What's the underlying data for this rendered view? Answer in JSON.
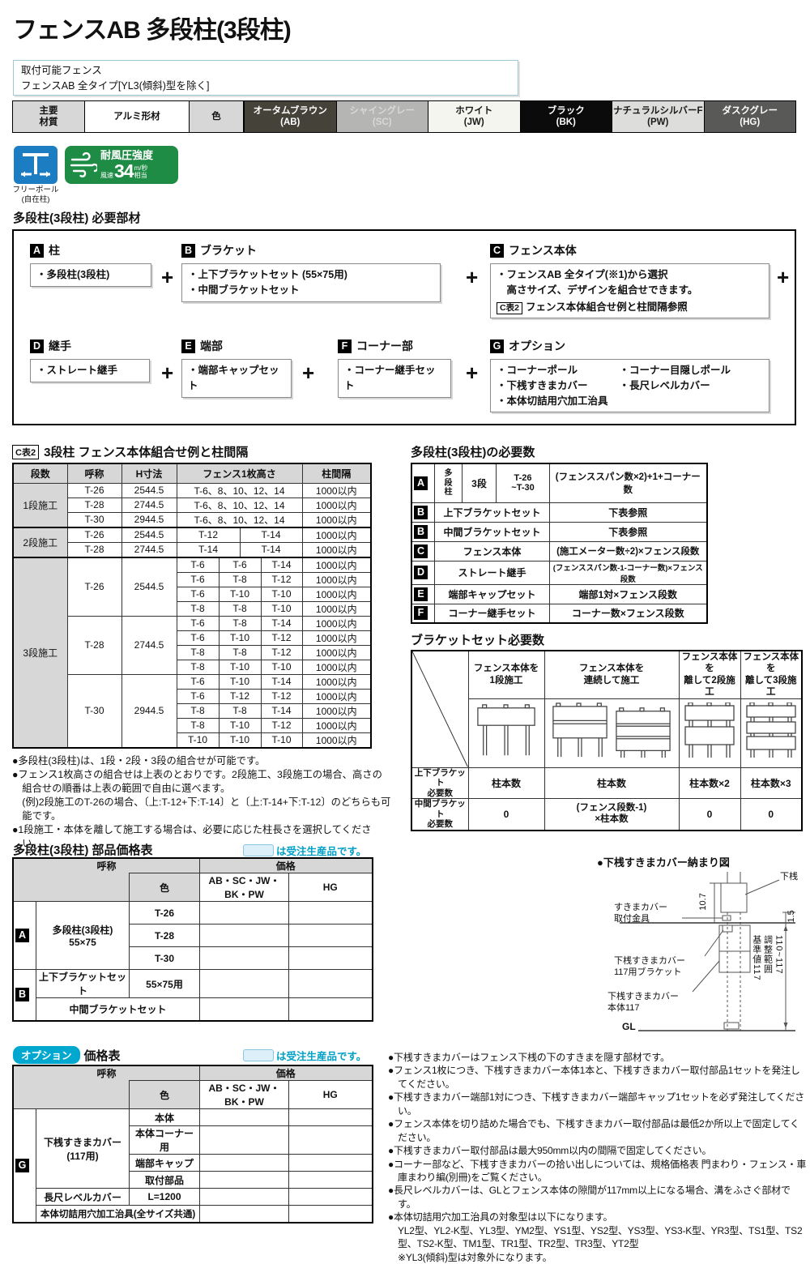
{
  "title": "フェンスAB 多段柱(3段柱)",
  "applicable_box": {
    "line1": "取付可能フェンス",
    "line2": "フェンスAB 全タイプ[YL3(傾斜)型を除く]"
  },
  "material_bar": {
    "material_label": "主要\n材質",
    "material_value": "アルミ形材",
    "color_label": "色",
    "colors": [
      {
        "name": "オータムブラウン",
        "code": "(AB)",
        "bg": "#454239",
        "fg": "#ffffff"
      },
      {
        "name": "シャイングレー",
        "code": "(SC)",
        "bg": "#b5b5b3",
        "fg": "#d8d8d6"
      },
      {
        "name": "ホワイト",
        "code": "(JW)",
        "bg": "#f5f5f0",
        "fg": "#1a1a1a"
      },
      {
        "name": "ブラック",
        "code": "(BK)",
        "bg": "#0b0b0b",
        "fg": "#ffffff"
      },
      {
        "name": "ナチュラルシルバーF",
        "code": "(PW)",
        "bg": "#dddddb",
        "fg": "#1a1a1a"
      },
      {
        "name": "ダスクグレー",
        "code": "(HG)",
        "bg": "#595957",
        "fg": "#ffffff"
      }
    ]
  },
  "badges": {
    "freepole_label": "フリーポール\n(自在柱)",
    "wind": {
      "title": "耐風圧強度",
      "prefix": "風速",
      "value": "34",
      "unit_top": "m/秒",
      "unit_bottom": "相当"
    }
  },
  "parts": {
    "section_title": "多段柱(3段柱) 必要部材",
    "plus": "+",
    "row1": [
      {
        "tag": "A",
        "name": "柱",
        "items": "・多段柱(3段柱)"
      },
      {
        "tag": "B",
        "name": "ブラケット",
        "items": "・上下ブラケットセット (55×75用)\n・中間ブラケットセット"
      },
      {
        "tag": "C",
        "name": "フェンス本体",
        "items": "・フェンスAB 全タイプ(※1)から選択\n　高さサイズ、デザインを組合せできます。",
        "ref_tag": "C表2",
        "ref_text": "フェンス本体組合せ例と柱間隔参照"
      }
    ],
    "row2": [
      {
        "tag": "D",
        "name": "継手",
        "items": "・ストレート継手"
      },
      {
        "tag": "E",
        "name": "端部",
        "items": "・端部キャップセット"
      },
      {
        "tag": "F",
        "name": "コーナー部",
        "items": "・コーナー継手セット"
      },
      {
        "tag": "G",
        "name": "オプション",
        "col1": "・コーナーポール\n・下桟すきまカバー\n・本体切詰用穴加工治具",
        "col2": "・コーナー目隠しポール\n・長尺レベルカバー"
      }
    ]
  },
  "ctable": {
    "tag": "C表2",
    "title": "3段柱 フェンス本体組合せ例と柱間隔",
    "headers": {
      "dan": "段数",
      "name": "呼称",
      "h": "H寸法",
      "height": "フェンス1枚高さ",
      "pitch": "柱間隔"
    },
    "rows": [
      {
        "g": "1段施工",
        "gs": 3,
        "n": "T-26",
        "h": "2544.5",
        "c": [
          "T-6、8、10、12、14"
        ],
        "p": "1000以内"
      },
      {
        "n": "T-28",
        "h": "2744.5",
        "c": [
          "T-6、8、10、12、14"
        ],
        "p": "1000以内"
      },
      {
        "n": "T-30",
        "h": "2944.5",
        "c": [
          "T-6、8、10、12、14"
        ],
        "p": "1000以内"
      },
      {
        "g": "2段施工",
        "gs": 2,
        "n": "T-26",
        "h": "2544.5",
        "c": [
          "T-12",
          "T-14"
        ],
        "p": "1000以内",
        "sep": true
      },
      {
        "n": "T-28",
        "h": "2744.5",
        "c": [
          "T-14",
          "T-14"
        ],
        "p": "1000以内"
      },
      {
        "g": "3段施工",
        "gs": 13,
        "n": "T-26",
        "ns": 4,
        "h": "2544.5",
        "c": [
          "T-6",
          "T-6",
          "T-14"
        ],
        "p": "1000以内",
        "sep": true
      },
      {
        "c": [
          "T-6",
          "T-8",
          "T-12"
        ],
        "p": "1000以内"
      },
      {
        "c": [
          "T-6",
          "T-10",
          "T-10"
        ],
        "p": "1000以内"
      },
      {
        "c": [
          "T-8",
          "T-8",
          "T-10"
        ],
        "p": "1000以内"
      },
      {
        "n": "T-28",
        "ns": 4,
        "h": "2744.5",
        "c": [
          "T-6",
          "T-8",
          "T-14"
        ],
        "p": "1000以内"
      },
      {
        "c": [
          "T-6",
          "T-10",
          "T-12"
        ],
        "p": "1000以内"
      },
      {
        "c": [
          "T-8",
          "T-8",
          "T-12"
        ],
        "p": "1000以内"
      },
      {
        "c": [
          "T-8",
          "T-10",
          "T-10"
        ],
        "p": "1000以内"
      },
      {
        "n": "T-30",
        "ns": 5,
        "h": "2944.5",
        "c": [
          "T-6",
          "T-10",
          "T-14"
        ],
        "p": "1000以内"
      },
      {
        "c": [
          "T-6",
          "T-12",
          "T-12"
        ],
        "p": "1000以内"
      },
      {
        "c": [
          "T-8",
          "T-8",
          "T-14"
        ],
        "p": "1000以内"
      },
      {
        "c": [
          "T-8",
          "T-10",
          "T-12"
        ],
        "p": "1000以内"
      },
      {
        "c": [
          "T-10",
          "T-10",
          "T-10"
        ],
        "p": "1000以内"
      }
    ],
    "notes": [
      {
        "t": "●多段柱(3段柱)は、1段・2段・3段の組合せが可能です。"
      },
      {
        "t": "●フェンス1枚高さの組合せは上表のとおりです。2段施工、3段施工の場合、高さの組合せの順番は上表の範囲で自由に選べます。"
      },
      {
        "t": "(例)2段施工のT-26の場合、〔上:T-12+下:T-14〕と〔上:T-14+下:T-12〕のどちらも可能です。",
        "c": true
      },
      {
        "t": "●1段施工・本体を離して施工する場合は、必要に応じた柱長さを選択してください。"
      }
    ]
  },
  "required": {
    "title": "多段柱(3段柱)の必要数",
    "row_a": {
      "tag": "A",
      "c1": "多\n段\n柱",
      "c2": "3段",
      "c3": "T-26\n~T-30",
      "formula": "(フェンススパン数×2)+1+コーナー数"
    },
    "rows": [
      {
        "tag": "B",
        "name": "上下ブラケットセット",
        "formula": "下表参照"
      },
      {
        "tag": "B",
        "name": "中間ブラケットセット",
        "formula": "下表参照"
      },
      {
        "tag": "C",
        "name": "フェンス本体",
        "formula": "(施工メーター数÷2)×フェンス段数",
        "size": "md"
      },
      {
        "tag": "D",
        "name": "ストレート継手",
        "formula": "(フェンススパン数-1-コーナー数)×フェンス段数",
        "size": "sm"
      },
      {
        "tag": "E",
        "name": "端部キャップセット",
        "formula": "端部1対×フェンス段数"
      },
      {
        "tag": "F",
        "name": "コーナー継手セット",
        "formula": "コーナー数×フェンス段数"
      }
    ]
  },
  "bracket": {
    "title": "ブラケットセット必要数",
    "col_headers": [
      "フェンス本体を\n1段施工",
      "フェンス本体を\n連続して施工",
      "フェンス本体を\n離して2段施工",
      "フェンス本体を\n離して3段施工"
    ],
    "row1_label": "上下ブラケット\n必要数",
    "row1": [
      "柱本数",
      "柱本数",
      "柱本数×2",
      "柱本数×3"
    ],
    "row2_label": "中間ブラケット\n必要数",
    "row2": [
      "0",
      "(フェンス段数-1)\n×柱本数",
      "0",
      "0"
    ]
  },
  "price1": {
    "title": "多段柱(3段柱) 部品価格表",
    "legend": "は受注生産品です。",
    "headers": {
      "name": "呼称",
      "color": "色",
      "price": "価格",
      "colors1": "AB・SC・JW・BK・PW",
      "colors2": "HG"
    },
    "tag_a": "A",
    "a_name": "多段柱(3段柱)\n55×75",
    "a_sizes": [
      "T-26",
      "T-28",
      "T-30"
    ],
    "tag_b": "B",
    "b1_name": "上下ブラケットセット",
    "b1_size": "55×75用",
    "b2_name": "中間ブラケットセット"
  },
  "price2": {
    "badge": "オプション",
    "title": "価格表",
    "legend": "は受注生産品です。",
    "headers": {
      "name": "呼称",
      "color": "色",
      "price": "価格",
      "colors1": "AB・SC・JW・BK・PW",
      "colors2": "HG"
    },
    "tag_g": "G",
    "g_name": "下桟すきまカバー\n(117用)",
    "g_subs": [
      "本体",
      "本体コーナー用",
      "端部キャップ",
      "取付部品"
    ],
    "lv_name": "長尺レベルカバー",
    "lv_size": "L=1200",
    "jig_name": "本体切詰用穴加工治具(全サイズ共通)"
  },
  "diagram": {
    "title": "●下桟すきまカバー納まり図",
    "shitazan": "下桟",
    "dim_gap": "10.7",
    "kanagu": "すきまカバー\n取付金具",
    "dim_top": "1.5",
    "bracket117": "下桟すきまカバー\n117用ブラケット",
    "body117": "下桟すきまカバー\n本体117",
    "range_text": "基準値117\n調整範囲\n110~117",
    "gl": "GL"
  },
  "notes_right": [
    {
      "t": "●下桟すきまカバーはフェンス下桟の下のすきまを隠す部材です。"
    },
    {
      "t": "●フェンス1枚につき、下桟すきまカバー本体1本と、下桟すきまカバー取付部品1セットを発注してください。"
    },
    {
      "t": "●下桟すきまカバー端部1対につき、下桟すきまカバー端部キャップ1セットを必ず発注してください。"
    },
    {
      "t": "●フェンス本体を切り詰めた場合でも、下桟すきまカバー取付部品は最低2か所以上で固定してください。"
    },
    {
      "t": "●下桟すきまカバー取付部品は最大950mm以内の間隔で固定してください。"
    },
    {
      "t": "●コーナー部など、下桟すきまカバーの拾い出しについては、規格価格表 門まわり・フェンス・車庫まわり編(別冊)をご覧ください。"
    },
    {
      "t": "●長尺レベルカバーは、GLとフェンス本体の隙間が117mm以上になる場合、溝をふさぐ部材です。"
    },
    {
      "t": "●本体切詰用穴加工治具の対象型は以下になります。"
    },
    {
      "t": "YL2型、YL2-K型、YL3型、YM2型、YS1型、YS2型、YS3型、YS3-K型、YR3型、TS1型、TS2型、TS2-K型、TM1型、TR1型、TR2型、TR3型、YT2型",
      "c": true
    },
    {
      "t": "※YL3(傾斜)型は対象外になります。",
      "c": true
    }
  ]
}
